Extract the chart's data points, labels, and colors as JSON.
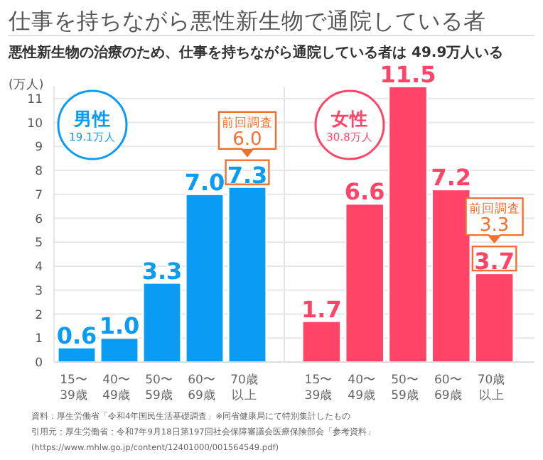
{
  "chart_data": [
    {
      "type": "bar",
      "title": "仕事を持ちながら悪性新生物で通院している者",
      "subtitle": "悪性新生物の治療のため、仕事を持ちながら通院している者は 49.9万人いる",
      "ylabel": "(万人)",
      "categories": [
        "15〜39歳",
        "40〜49歳",
        "50〜59歳",
        "60〜69歳",
        "70歳以上"
      ],
      "series": [
        {
          "name": "男性",
          "color": "#0a9cf5",
          "values": [
            0.6,
            1.0,
            3.3,
            7.0,
            7.3
          ],
          "value_labels": [
            "0.6",
            "1.0",
            "3.3",
            "7.0",
            "7.3"
          ]
        }
      ],
      "annotations": [
        "19.1万人",
        {
          "text": "前回調査\n6.0",
          "x": "70歳以上",
          "y": 7.3
        }
      ],
      "ylim": [
        0,
        11.5
      ],
      "yticks": [
        0,
        1,
        2,
        3,
        4,
        5,
        6,
        7,
        8,
        9,
        10,
        11
      ],
      "grid": "y"
    },
    {
      "type": "bar",
      "categories": [
        "15〜39歳",
        "40〜49歳",
        "50〜59歳",
        "60〜69歳",
        "70歳以上"
      ],
      "series": [
        {
          "name": "女性",
          "color": "#ff4468",
          "values": [
            1.7,
            6.6,
            11.5,
            7.2,
            3.7
          ],
          "value_labels": [
            "1.7",
            "6.6",
            "11.5",
            "7.2",
            "3.7"
          ]
        }
      ],
      "annotations": [
        "30.8万人",
        {
          "text": "前回調査\n3.3",
          "x": "70歳以上",
          "y": 3.7
        },
        "資料：厚生労働省「令和4年国民生活基礎調査」※同省健康局にて特別集計したもの",
        "引用元：厚生労働省：令和7年9月18日第197回社会保障審議会医療保険部会「参考資料」",
        "(https://www.mhlw.go.jp/content/12401000/001564549.pdf)"
      ],
      "ylim": [
        0,
        11.5
      ],
      "yticks": [
        0,
        1,
        2,
        3,
        4,
        5,
        6,
        7,
        8,
        9,
        10,
        11
      ],
      "grid": "y",
      "tick_labels": "x"
    }
  ]
}
